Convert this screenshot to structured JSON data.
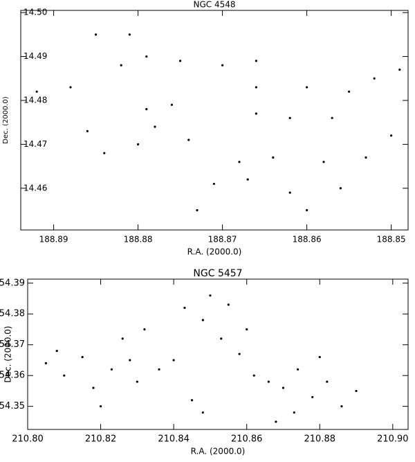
{
  "chart_data": [
    {
      "type": "scatter",
      "title": "NGC 4548",
      "xlabel": "R.A. (2000.0)",
      "ylabel": "Dec. (2000.0)",
      "color": "#000000",
      "xlim": [
        188.8939,
        188.848
      ],
      "ylim": [
        14.4505,
        14.5005
      ],
      "xticks": [
        188.89,
        188.88,
        188.87,
        188.86,
        188.85
      ],
      "yticks": [
        14.46,
        14.47,
        14.48,
        14.49,
        {
          "value": 14.5,
          "label": "14.50"
        }
      ],
      "x": [
        188.885,
        188.881,
        188.879,
        188.882,
        188.888,
        188.892,
        188.875,
        188.87,
        188.866,
        188.866,
        188.86,
        188.855,
        188.852,
        188.849,
        188.857,
        188.862,
        188.866,
        188.879,
        188.878,
        188.88,
        188.884,
        188.874,
        188.868,
        188.864,
        188.858,
        188.853,
        188.871,
        188.867,
        188.862,
        188.856,
        188.85,
        188.873,
        188.86,
        188.886,
        188.876
      ],
      "y": [
        14.495,
        14.495,
        14.49,
        14.488,
        14.483,
        14.482,
        14.489,
        14.488,
        14.489,
        14.483,
        14.483,
        14.482,
        14.485,
        14.487,
        14.476,
        14.476,
        14.477,
        14.478,
        14.474,
        14.47,
        14.468,
        14.471,
        14.466,
        14.467,
        14.466,
        14.467,
        14.461,
        14.462,
        14.459,
        14.46,
        14.472,
        14.455,
        14.455,
        14.473,
        14.479
      ]
    },
    {
      "type": "scatter",
      "title": "NGC 5457",
      "xlabel": "R.A. (2000.0)",
      "ylabel": "Dec. (2000.0)",
      "color": "#000000",
      "xlim": [
        210.8,
        210.9042
      ],
      "ylim": [
        54.3425,
        54.3913
      ],
      "xticks": [
        {
          "value": 210.8,
          "label": "210.80"
        },
        210.82,
        210.84,
        210.86,
        210.88,
        {
          "value": 210.9,
          "label": "210.90"
        }
      ],
      "yticks": [
        54.35,
        54.36,
        54.37,
        54.38,
        54.39
      ],
      "x": [
        210.805,
        210.81,
        210.815,
        210.818,
        210.823,
        210.828,
        210.826,
        210.83,
        210.832,
        210.836,
        210.84,
        210.845,
        210.848,
        210.853,
        210.85,
        210.855,
        210.858,
        210.862,
        210.866,
        210.87,
        210.874,
        210.878,
        210.882,
        210.886,
        210.89,
        210.88,
        210.868,
        210.873,
        210.848,
        210.843,
        210.86,
        210.82,
        210.808
      ],
      "y": [
        54.364,
        54.36,
        54.366,
        54.356,
        54.362,
        54.365,
        54.372,
        54.358,
        54.375,
        54.362,
        54.365,
        54.352,
        54.348,
        54.372,
        54.386,
        54.383,
        54.367,
        54.36,
        54.358,
        54.356,
        54.362,
        54.353,
        54.358,
        54.35,
        54.355,
        54.366,
        54.345,
        54.348,
        54.378,
        54.382,
        54.375,
        54.35,
        54.368
      ]
    }
  ]
}
